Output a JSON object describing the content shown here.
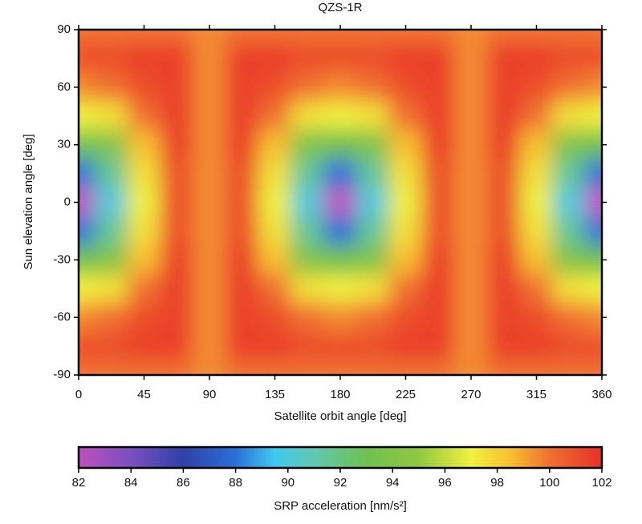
{
  "chart_data": {
    "type": "heatmap",
    "title": "QZS-1R",
    "x_label": "Satellite orbit angle [deg]",
    "y_label": "Sun elevation angle [deg]",
    "x": [
      0,
      22.5,
      45,
      67.5,
      90,
      112.5,
      135,
      157.5,
      180,
      202.5,
      225,
      247.5,
      270,
      292.5,
      315,
      337.5,
      360
    ],
    "y": [
      90,
      75,
      60,
      45,
      30,
      15,
      0,
      -15,
      -30,
      -45,
      -60,
      -75,
      -90
    ],
    "values": [
      [
        100,
        100,
        100,
        100,
        99.5,
        100,
        100,
        100,
        100,
        100,
        100,
        100,
        99.5,
        100,
        100,
        100,
        100
      ],
      [
        101,
        101,
        101.5,
        101.5,
        99.5,
        101.5,
        101.5,
        101,
        101,
        101,
        101.5,
        101.5,
        99.5,
        101.5,
        101.5,
        101,
        101
      ],
      [
        99.5,
        100,
        101,
        101.5,
        99.5,
        101.5,
        101,
        100,
        99.5,
        100,
        101,
        101.5,
        99.5,
        101.5,
        101,
        100,
        99.5
      ],
      [
        97,
        97.5,
        100,
        101.5,
        99.5,
        101.5,
        100,
        97.5,
        97,
        97.5,
        100,
        101.5,
        99.5,
        101.5,
        100,
        97.5,
        97
      ],
      [
        93,
        94,
        98.5,
        101.5,
        99.5,
        101.5,
        98.5,
        94,
        93,
        94,
        98.5,
        101.5,
        99.5,
        101.5,
        98.5,
        94,
        93
      ],
      [
        88,
        91.5,
        97.5,
        101,
        99.5,
        101,
        97.5,
        91.5,
        88,
        91.5,
        97.5,
        101,
        99.5,
        101,
        97.5,
        91.5,
        88
      ],
      [
        82,
        90,
        97,
        101,
        99.5,
        101,
        97,
        90,
        82,
        90,
        97,
        101,
        99.5,
        101,
        97,
        90,
        82
      ],
      [
        88,
        91.5,
        97.5,
        101,
        99.5,
        101,
        97.5,
        91.5,
        88,
        91.5,
        97.5,
        101,
        99.5,
        101,
        97.5,
        91.5,
        88
      ],
      [
        93,
        94,
        98.5,
        101.5,
        99.5,
        101.5,
        98.5,
        94,
        93,
        94,
        98.5,
        101.5,
        99.5,
        101.5,
        98.5,
        94,
        93
      ],
      [
        97,
        97.5,
        100,
        101.5,
        99.5,
        101.5,
        100,
        97.5,
        97,
        97.5,
        100,
        101.5,
        99.5,
        101.5,
        100,
        97.5,
        97
      ],
      [
        99.5,
        100,
        101,
        101.5,
        99.5,
        101.5,
        101,
        100,
        99.5,
        100,
        101,
        101.5,
        99.5,
        101.5,
        101,
        100,
        99.5
      ],
      [
        101,
        101,
        101.5,
        101.5,
        99.5,
        101.5,
        101.5,
        101,
        101,
        101,
        101.5,
        101.5,
        99.5,
        101.5,
        101.5,
        101,
        101
      ],
      [
        100,
        100,
        100,
        100,
        99.5,
        100,
        100,
        100,
        100,
        100,
        100,
        100,
        99.5,
        100,
        100,
        100,
        100
      ]
    ],
    "xlim": [
      0,
      360
    ],
    "ylim": [
      -90,
      90
    ],
    "xticks": [
      0,
      45,
      90,
      135,
      180,
      225,
      270,
      315,
      360
    ],
    "yticks": [
      -90,
      -60,
      -30,
      0,
      30,
      60,
      90
    ],
    "colorbar": {
      "label": "SRP acceleration [nm/s²]",
      "lim": [
        82,
        102
      ],
      "ticks": [
        82,
        84,
        86,
        88,
        90,
        92,
        94,
        96,
        98,
        100,
        102
      ]
    },
    "colormap": [
      {
        "value": 82,
        "color": "#c050c0"
      },
      {
        "value": 84,
        "color": "#7a4fc0"
      },
      {
        "value": 86,
        "color": "#3040a8"
      },
      {
        "value": 88,
        "color": "#2a70d8"
      },
      {
        "value": 89.5,
        "color": "#40c8f0"
      },
      {
        "value": 91,
        "color": "#60c8b0"
      },
      {
        "value": 93,
        "color": "#70c050"
      },
      {
        "value": 95,
        "color": "#90c840"
      },
      {
        "value": 97,
        "color": "#f0f040"
      },
      {
        "value": 98.5,
        "color": "#f8c030"
      },
      {
        "value": 100,
        "color": "#f07030"
      },
      {
        "value": 102,
        "color": "#e83028"
      }
    ]
  }
}
